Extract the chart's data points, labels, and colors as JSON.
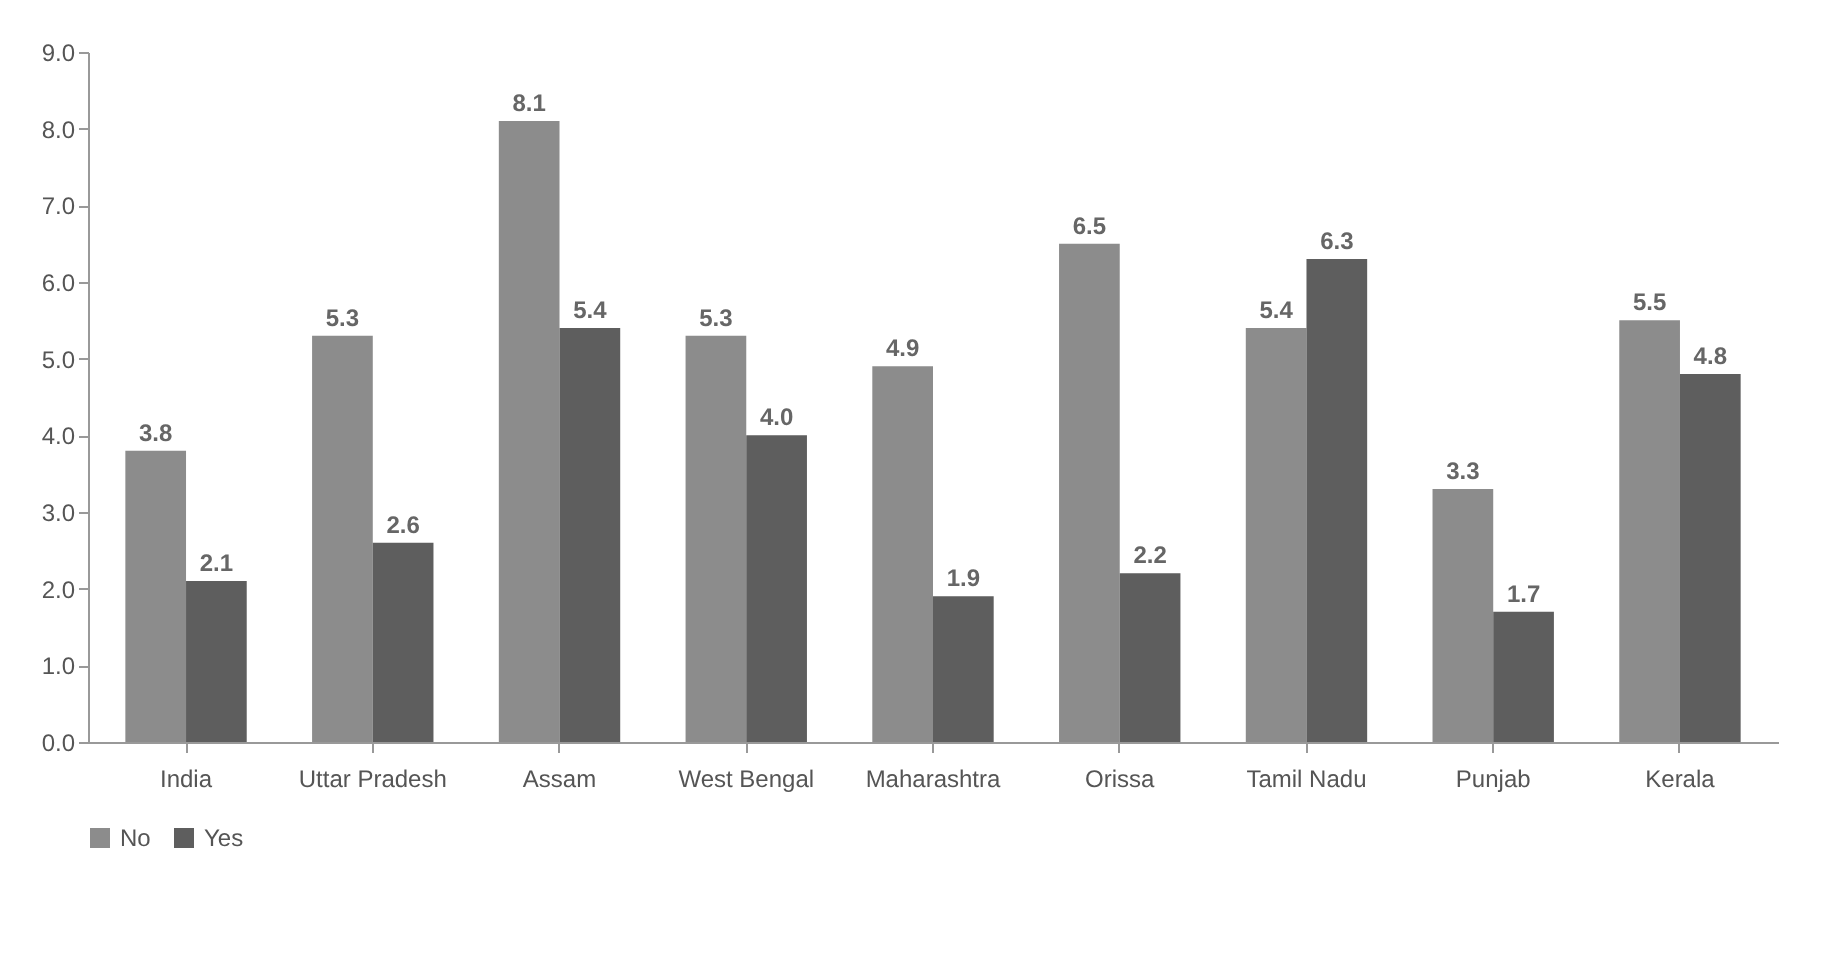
{
  "chart_data": {
    "type": "bar",
    "categories": [
      "India",
      "Uttar Pradesh",
      "Assam",
      "West Bengal",
      "Maharashtra",
      "Orissa",
      "Tamil Nadu",
      "Punjab",
      "Kerala"
    ],
    "series": [
      {
        "name": "No",
        "color": "#8c8c8c",
        "values": [
          3.8,
          5.3,
          8.1,
          5.3,
          4.9,
          6.5,
          5.4,
          3.3,
          5.5
        ],
        "value_labels": [
          "3.8",
          "5.3",
          "8.1",
          "5.3",
          "4.9",
          "6.5",
          "5.4",
          "3.3",
          "5.5"
        ]
      },
      {
        "name": "Yes",
        "color": "#5e5e5e",
        "values": [
          2.1,
          2.6,
          5.4,
          4.0,
          1.9,
          2.2,
          6.3,
          1.7,
          4.8
        ],
        "value_labels": [
          "2.1",
          "2.6",
          "5.4",
          "4.0",
          "1.9",
          "2.2",
          "6.3",
          "1.7",
          "4.8"
        ]
      }
    ],
    "ylim": [
      0,
      9
    ],
    "yticks": [
      {
        "value": 0,
        "label": "0.0"
      },
      {
        "value": 1,
        "label": "1.0"
      },
      {
        "value": 2,
        "label": "2.0"
      },
      {
        "value": 3,
        "label": "3.0"
      },
      {
        "value": 4,
        "label": "4.0"
      },
      {
        "value": 5,
        "label": "5.0"
      },
      {
        "value": 6,
        "label": "6.0"
      },
      {
        "value": 7,
        "label": "7.0"
      },
      {
        "value": 8,
        "label": "8.0"
      },
      {
        "value": 9,
        "label": "9.0"
      }
    ],
    "grid": false,
    "legend": "bottom"
  }
}
